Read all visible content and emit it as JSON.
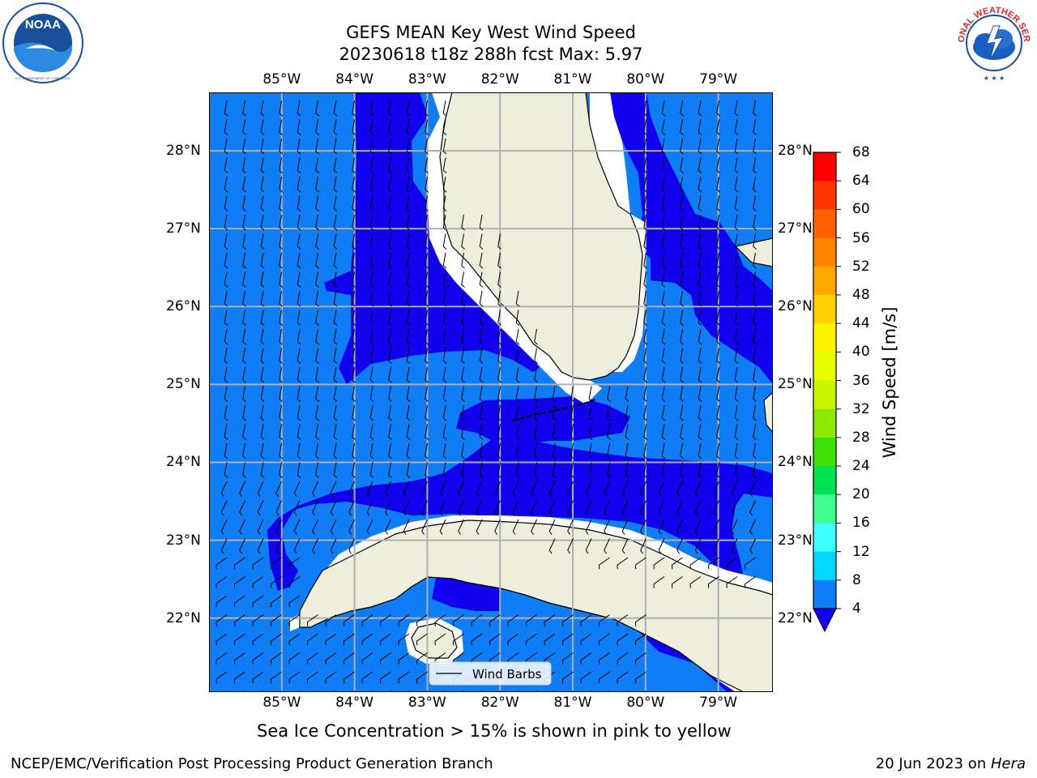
{
  "header": {
    "title_line1": "GEFS MEAN Key West Wind Speed",
    "title_line2": "20230618 t18z 288h fcst   Max: 5.97"
  },
  "logos": {
    "left": {
      "name": "NOAA",
      "ring_text": "NATIONAL OCEANIC AND ATMOSPHERIC ADMINISTRATION · U.S. DEPARTMENT OF COMMERCE",
      "color": "#1a4f9c"
    },
    "right": {
      "name": "NATIONAL WEATHER SERVICE",
      "color": "#d62828"
    }
  },
  "map": {
    "region": "Key West / South Florida / Cuba",
    "lon_ticks": [
      "85°W",
      "84°W",
      "83°W",
      "82°W",
      "81°W",
      "80°W",
      "79°W"
    ],
    "lat_ticks": [
      "28°N",
      "27°N",
      "26°N",
      "25°N",
      "24°N",
      "23°N",
      "22°N"
    ],
    "lon_range": [
      -86.0,
      -78.25
    ],
    "lat_range": [
      21.05,
      28.75
    ],
    "colors": {
      "ocean_light": "#0f7df6",
      "ocean_dark": "#1100ee",
      "land": "#eeeedd",
      "grid": "#b0b0b0"
    },
    "legend_label": "Wind Barbs"
  },
  "colorbar": {
    "label": "Wind Speed [m/s]",
    "ticks": [
      "68",
      "64",
      "60",
      "56",
      "52",
      "48",
      "44",
      "40",
      "36",
      "32",
      "28",
      "24",
      "20",
      "16",
      "12",
      "8",
      "4"
    ],
    "colors": [
      "#ff0000",
      "#ff3000",
      "#ff5a00",
      "#ff8000",
      "#ffa500",
      "#ffd000",
      "#fff000",
      "#eeff00",
      "#ccff00",
      "#a0f000",
      "#50e800",
      "#00e000",
      "#20f060",
      "#50ff80",
      "#a0ffff",
      "#60ffff",
      "#00f0ff",
      "#00d0ff",
      "#10a0ff",
      "#0f7df6",
      "#1100ee"
    ],
    "extend_color": "#1100ee"
  },
  "note": "Sea Ice Concentration > 15% is shown in pink to yellow",
  "footer": {
    "left": "NCEP/EMC/Verification Post Processing Product Generation Branch",
    "right_date": "20 Jun 2023 on ",
    "right_host": "Hera"
  }
}
